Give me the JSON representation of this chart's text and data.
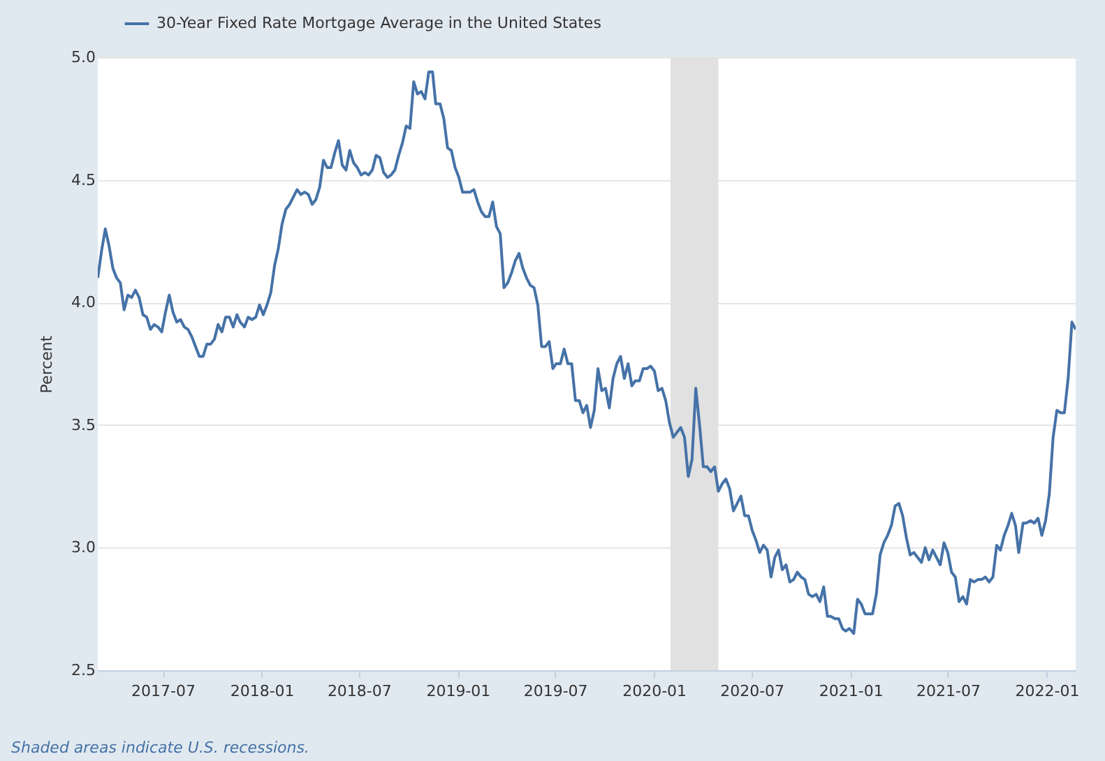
{
  "chart_data": {
    "type": "line",
    "ylabel": "Percent",
    "legend": "top left",
    "grid": "y",
    "x": [
      "2017-03-02",
      "2017-03-09",
      "2017-03-16",
      "2017-03-23",
      "2017-03-30",
      "2017-04-06",
      "2017-04-13",
      "2017-04-20",
      "2017-04-27",
      "2017-05-04",
      "2017-05-11",
      "2017-05-18",
      "2017-05-25",
      "2017-06-01",
      "2017-06-08",
      "2017-06-15",
      "2017-06-22",
      "2017-06-29",
      "2017-07-06",
      "2017-07-13",
      "2017-07-20",
      "2017-07-27",
      "2017-08-03",
      "2017-08-10",
      "2017-08-17",
      "2017-08-24",
      "2017-08-31",
      "2017-09-07",
      "2017-09-14",
      "2017-09-21",
      "2017-09-28",
      "2017-10-05",
      "2017-10-12",
      "2017-10-19",
      "2017-10-26",
      "2017-11-02",
      "2017-11-09",
      "2017-11-16",
      "2017-11-22",
      "2017-11-30",
      "2017-12-07",
      "2017-12-14",
      "2017-12-21",
      "2017-12-28",
      "2018-01-04",
      "2018-01-11",
      "2018-01-18",
      "2018-01-25",
      "2018-02-01",
      "2018-02-08",
      "2018-02-15",
      "2018-02-22",
      "2018-03-01",
      "2018-03-08",
      "2018-03-15",
      "2018-03-22",
      "2018-03-29",
      "2018-04-05",
      "2018-04-12",
      "2018-04-19",
      "2018-04-26",
      "2018-05-03",
      "2018-05-10",
      "2018-05-17",
      "2018-05-24",
      "2018-05-31",
      "2018-06-07",
      "2018-06-14",
      "2018-06-21",
      "2018-06-28",
      "2018-07-05",
      "2018-07-12",
      "2018-07-19",
      "2018-07-26",
      "2018-08-02",
      "2018-08-09",
      "2018-08-16",
      "2018-08-23",
      "2018-08-30",
      "2018-09-06",
      "2018-09-13",
      "2018-09-20",
      "2018-09-27",
      "2018-10-04",
      "2018-10-11",
      "2018-10-18",
      "2018-10-25",
      "2018-11-01",
      "2018-11-08",
      "2018-11-15",
      "2018-11-21",
      "2018-11-29",
      "2018-12-06",
      "2018-12-13",
      "2018-12-20",
      "2018-12-27",
      "2019-01-03",
      "2019-01-10",
      "2019-01-17",
      "2019-01-24",
      "2019-01-31",
      "2019-02-07",
      "2019-02-14",
      "2019-02-21",
      "2019-02-28",
      "2019-03-07",
      "2019-03-14",
      "2019-03-21",
      "2019-03-28",
      "2019-04-04",
      "2019-04-11",
      "2019-04-18",
      "2019-04-25",
      "2019-05-02",
      "2019-05-09",
      "2019-05-16",
      "2019-05-23",
      "2019-05-30",
      "2019-06-06",
      "2019-06-13",
      "2019-06-20",
      "2019-06-27",
      "2019-07-03",
      "2019-07-11",
      "2019-07-18",
      "2019-07-25",
      "2019-08-01",
      "2019-08-08",
      "2019-08-15",
      "2019-08-22",
      "2019-08-29",
      "2019-09-05",
      "2019-09-12",
      "2019-09-19",
      "2019-09-26",
      "2019-10-03",
      "2019-10-10",
      "2019-10-17",
      "2019-10-24",
      "2019-10-31",
      "2019-11-07",
      "2019-11-14",
      "2019-11-21",
      "2019-11-27",
      "2019-12-05",
      "2019-12-12",
      "2019-12-19",
      "2019-12-26",
      "2020-01-02",
      "2020-01-09",
      "2020-01-16",
      "2020-01-23",
      "2020-01-30",
      "2020-02-06",
      "2020-02-13",
      "2020-02-20",
      "2020-02-27",
      "2020-03-05",
      "2020-03-12",
      "2020-03-19",
      "2020-03-26",
      "2020-04-02",
      "2020-04-09",
      "2020-04-16",
      "2020-04-23",
      "2020-04-30",
      "2020-05-07",
      "2020-05-14",
      "2020-05-21",
      "2020-05-28",
      "2020-06-04",
      "2020-06-11",
      "2020-06-18",
      "2020-06-25",
      "2020-07-02",
      "2020-07-09",
      "2020-07-16",
      "2020-07-23",
      "2020-07-30",
      "2020-08-06",
      "2020-08-13",
      "2020-08-20",
      "2020-08-27",
      "2020-09-03",
      "2020-09-10",
      "2020-09-17",
      "2020-09-24",
      "2020-10-01",
      "2020-10-08",
      "2020-10-15",
      "2020-10-22",
      "2020-10-29",
      "2020-11-05",
      "2020-11-12",
      "2020-11-19",
      "2020-11-25",
      "2020-12-03",
      "2020-12-10",
      "2020-12-17",
      "2020-12-23",
      "2020-12-30",
      "2021-01-07",
      "2021-01-14",
      "2021-01-21",
      "2021-01-28",
      "2021-02-04",
      "2021-02-11",
      "2021-02-18",
      "2021-02-25",
      "2021-03-04",
      "2021-03-11",
      "2021-03-18",
      "2021-03-25",
      "2021-04-01",
      "2021-04-08",
      "2021-04-15",
      "2021-04-22",
      "2021-04-29",
      "2021-05-06",
      "2021-05-13",
      "2021-05-20",
      "2021-05-27",
      "2021-06-03",
      "2021-06-10",
      "2021-06-17",
      "2021-06-24",
      "2021-07-01",
      "2021-07-08",
      "2021-07-15",
      "2021-07-22",
      "2021-07-29",
      "2021-08-05",
      "2021-08-12",
      "2021-08-19",
      "2021-08-26",
      "2021-09-02",
      "2021-09-09",
      "2021-09-16",
      "2021-09-23",
      "2021-09-30",
      "2021-10-07",
      "2021-10-14",
      "2021-10-21",
      "2021-10-28",
      "2021-11-04",
      "2021-11-10",
      "2021-11-18",
      "2021-11-24",
      "2021-12-02",
      "2021-12-09",
      "2021-12-16",
      "2021-12-23",
      "2021-12-30",
      "2022-01-06",
      "2022-01-13",
      "2022-01-20",
      "2022-01-27",
      "2022-02-03",
      "2022-02-10",
      "2022-02-17",
      "2022-02-24"
    ],
    "series": [
      {
        "name": "30-Year Fixed Rate Mortgage Average in the United States",
        "color": "#4572a7",
        "values": [
          4.1,
          4.21,
          4.3,
          4.23,
          4.14,
          4.1,
          4.08,
          3.97,
          4.03,
          4.02,
          4.05,
          4.02,
          3.95,
          3.94,
          3.89,
          3.91,
          3.9,
          3.88,
          3.96,
          4.03,
          3.96,
          3.92,
          3.93,
          3.9,
          3.89,
          3.86,
          3.82,
          3.78,
          3.78,
          3.83,
          3.83,
          3.85,
          3.91,
          3.88,
          3.94,
          3.94,
          3.9,
          3.95,
          3.92,
          3.9,
          3.94,
          3.93,
          3.94,
          3.99,
          3.95,
          3.99,
          4.04,
          4.15,
          4.22,
          4.32,
          4.38,
          4.4,
          4.43,
          4.46,
          4.44,
          4.45,
          4.44,
          4.4,
          4.42,
          4.47,
          4.58,
          4.55,
          4.55,
          4.61,
          4.66,
          4.56,
          4.54,
          4.62,
          4.57,
          4.55,
          4.52,
          4.53,
          4.52,
          4.54,
          4.6,
          4.59,
          4.53,
          4.51,
          4.52,
          4.54,
          4.6,
          4.65,
          4.72,
          4.71,
          4.9,
          4.85,
          4.86,
          4.83,
          4.94,
          4.94,
          4.81,
          4.81,
          4.75,
          4.63,
          4.62,
          4.55,
          4.51,
          4.45,
          4.45,
          4.45,
          4.46,
          4.41,
          4.37,
          4.35,
          4.35,
          4.41,
          4.31,
          4.28,
          4.06,
          4.08,
          4.12,
          4.17,
          4.2,
          4.14,
          4.1,
          4.07,
          4.06,
          3.99,
          3.82,
          3.82,
          3.84,
          3.73,
          3.75,
          3.75,
          3.81,
          3.75,
          3.75,
          3.6,
          3.6,
          3.55,
          3.58,
          3.49,
          3.56,
          3.73,
          3.64,
          3.65,
          3.57,
          3.69,
          3.75,
          3.78,
          3.69,
          3.75,
          3.66,
          3.68,
          3.68,
          3.73,
          3.73,
          3.74,
          3.72,
          3.64,
          3.65,
          3.6,
          3.51,
          3.45,
          3.47,
          3.49,
          3.45,
          3.29,
          3.36,
          3.65,
          3.5,
          3.33,
          3.33,
          3.31,
          3.33,
          3.23,
          3.26,
          3.28,
          3.24,
          3.15,
          3.18,
          3.21,
          3.13,
          3.13,
          3.07,
          3.03,
          2.98,
          3.01,
          2.99,
          2.88,
          2.96,
          2.99,
          2.91,
          2.93,
          2.86,
          2.87,
          2.9,
          2.88,
          2.87,
          2.81,
          2.8,
          2.81,
          2.78,
          2.84,
          2.72,
          2.72,
          2.71,
          2.71,
          2.67,
          2.66,
          2.67,
          2.65,
          2.79,
          2.77,
          2.73,
          2.73,
          2.73,
          2.81,
          2.97,
          3.02,
          3.05,
          3.09,
          3.17,
          3.18,
          3.13,
          3.04,
          2.97,
          2.98,
          2.96,
          2.94,
          3.0,
          2.95,
          2.99,
          2.96,
          2.93,
          3.02,
          2.98,
          2.9,
          2.88,
          2.78,
          2.8,
          2.77,
          2.87,
          2.86,
          2.87,
          2.87,
          2.88,
          2.86,
          2.88,
          3.01,
          2.99,
          3.05,
          3.09,
          3.14,
          3.09,
          2.98,
          3.1,
          3.1,
          3.11,
          3.1,
          3.12,
          3.05,
          3.11,
          3.22,
          3.45,
          3.56,
          3.55,
          3.55,
          3.69,
          3.92,
          3.89
        ]
      }
    ],
    "xlim": [
      "2017-03-02",
      "2022-02-24"
    ],
    "xticks": [
      "2017-07",
      "2018-01",
      "2018-07",
      "2019-01",
      "2019-07",
      "2020-01",
      "2020-07",
      "2021-01",
      "2021-07",
      "2022-01"
    ],
    "ylim": [
      2.5,
      5.0
    ],
    "yticks": [
      {
        "value": 2.5,
        "label": "2.5"
      },
      {
        "value": 3,
        "label": "3.0"
      },
      {
        "value": 3.5,
        "label": "3.5"
      },
      {
        "value": 4,
        "label": "4.0"
      },
      {
        "value": 4.5,
        "label": "4.5"
      },
      {
        "value": 5,
        "label": "5.0"
      }
    ],
    "bands": [
      {
        "axis": "x",
        "from": "2020-02-01",
        "to": "2020-04-30",
        "color": "#e1e1e1"
      }
    ],
    "annotations": [
      "Shaded areas indicate U.S. recessions."
    ]
  }
}
